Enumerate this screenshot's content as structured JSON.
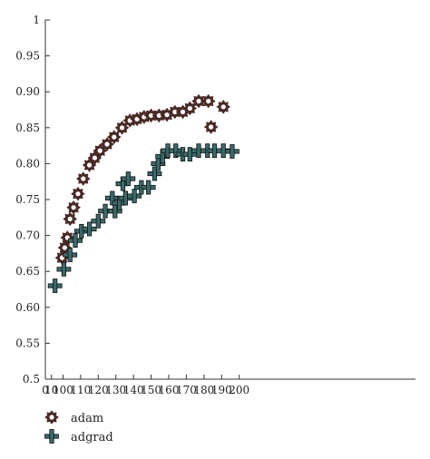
{
  "chart_data": {
    "type": "scatter",
    "xlim": [
      0,
      210
    ],
    "ylim": [
      0.5,
      1.0
    ],
    "xticks": [
      0,
      10,
      100,
      110,
      120,
      130,
      140,
      150,
      160,
      170,
      180,
      190,
      200
    ],
    "xtick_labels": [
      "0",
      "10",
      "100",
      "110",
      "120",
      "130",
      "140",
      "150",
      "160",
      "170",
      "180",
      "190",
      "200"
    ],
    "yticks": [
      0.5,
      0.55,
      0.6,
      0.65,
      0.7,
      0.75,
      0.8,
      0.85,
      0.9,
      0.95,
      1.0
    ],
    "ytick_labels": [
      "0.5",
      "0.55",
      "0.60",
      "0.65",
      "0.70",
      "0.75",
      "0.80",
      "0.85",
      "0.90",
      "0.95",
      "1"
    ],
    "legend_position": "bottom-left",
    "grid": false,
    "series": [
      {
        "name": "adam",
        "marker": "gear",
        "color": "#4a2a26",
        "points": [
          [
            9.5,
            0.669
          ],
          [
            11,
            0.683
          ],
          [
            12.5,
            0.697
          ],
          [
            14,
            0.723
          ],
          [
            16,
            0.739
          ],
          [
            18.5,
            0.758
          ],
          [
            21.5,
            0.779
          ],
          [
            25,
            0.798
          ],
          [
            28,
            0.808
          ],
          [
            31,
            0.818
          ],
          [
            35,
            0.827
          ],
          [
            39,
            0.837
          ],
          [
            43.5,
            0.85
          ],
          [
            48,
            0.86
          ],
          [
            52,
            0.862
          ],
          [
            56,
            0.865
          ],
          [
            60,
            0.867
          ],
          [
            64.5,
            0.867
          ],
          [
            69,
            0.868
          ],
          [
            73.5,
            0.872
          ],
          [
            78,
            0.872
          ],
          [
            82,
            0.877
          ],
          [
            87,
            0.887
          ],
          [
            92.5,
            0.887
          ],
          [
            94,
            0.851
          ],
          [
            101,
            0.879
          ]
        ]
      },
      {
        "name": "adgrad",
        "marker": "plus",
        "color": "#3a6b6b",
        "points": [
          [
            5.5,
            0.63
          ],
          [
            10.5,
            0.653
          ],
          [
            14,
            0.673
          ],
          [
            17,
            0.693
          ],
          [
            20.5,
            0.706
          ],
          [
            25,
            0.709
          ],
          [
            30,
            0.72
          ],
          [
            34,
            0.734
          ],
          [
            38,
            0.752
          ],
          [
            39.5,
            0.734
          ],
          [
            42,
            0.745
          ],
          [
            44,
            0.772
          ],
          [
            45.5,
            0.752
          ],
          [
            47,
            0.779
          ],
          [
            50.5,
            0.755
          ],
          [
            54.5,
            0.767
          ],
          [
            58.5,
            0.767
          ],
          [
            62,
            0.786
          ],
          [
            64,
            0.8
          ],
          [
            66.5,
            0.81
          ],
          [
            69.5,
            0.818
          ],
          [
            74,
            0.818
          ],
          [
            78,
            0.813
          ],
          [
            82,
            0.813
          ],
          [
            87,
            0.818
          ],
          [
            92,
            0.818
          ],
          [
            96,
            0.818
          ],
          [
            101,
            0.818
          ],
          [
            106,
            0.817
          ]
        ]
      }
    ]
  }
}
